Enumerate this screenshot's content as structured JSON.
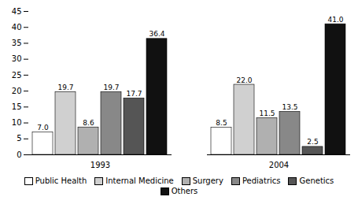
{
  "chart_data": {
    "type": "bar",
    "categories": [
      "1993",
      "2004"
    ],
    "series": [
      {
        "name": "Public Health",
        "color": "#ffffff",
        "values": [
          7.0,
          8.5
        ],
        "value_labels": [
          "7.0",
          "8.5"
        ]
      },
      {
        "name": "Internal Medicine",
        "color": "#d0d0d0",
        "values": [
          19.7,
          22.0
        ],
        "value_labels": [
          "19.7",
          "22.0"
        ]
      },
      {
        "name": "Surgery",
        "color": "#b0b0b0",
        "values": [
          8.6,
          11.5
        ],
        "value_labels": [
          "8.6",
          "11.5"
        ]
      },
      {
        "name": "Pediatrics",
        "color": "#888888",
        "values": [
          19.7,
          13.5
        ],
        "value_labels": [
          "19.7",
          "13.5"
        ]
      },
      {
        "name": "Genetics",
        "color": "#555555",
        "values": [
          17.7,
          2.5
        ],
        "value_labels": [
          "17.7",
          "2.5"
        ]
      },
      {
        "name": "Others",
        "color": "#111111",
        "values": [
          36.4,
          41.0
        ],
        "value_labels": [
          "36.4",
          "41.0"
        ]
      }
    ],
    "ylim": [
      0,
      45
    ],
    "yticks": [
      0,
      5,
      10,
      15,
      20,
      25,
      30,
      35,
      40,
      45
    ],
    "grid": false,
    "data_labels": true,
    "legend": "bottom"
  }
}
